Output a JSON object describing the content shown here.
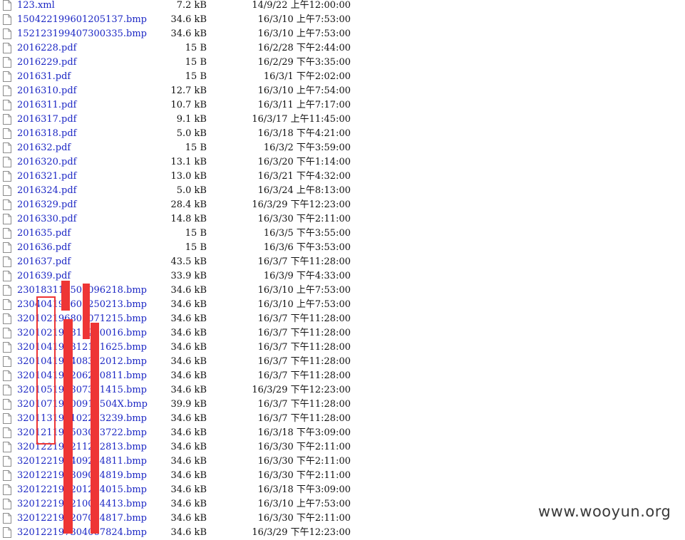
{
  "files": [
    {
      "name": "123.xml",
      "size": "7.2 kB",
      "date": "14/9/22 上午12:00:00"
    },
    {
      "name": "150422199601205137.bmp",
      "size": "34.6 kB",
      "date": "16/3/10 上午7:53:00"
    },
    {
      "name": "152123199407300335.bmp",
      "size": "34.6 kB",
      "date": "16/3/10 上午7:53:00"
    },
    {
      "name": "2016228.pdf",
      "size": "15 B",
      "date": "16/2/28 下午2:44:00"
    },
    {
      "name": "2016229.pdf",
      "size": "15 B",
      "date": "16/2/29 下午3:35:00"
    },
    {
      "name": "201631.pdf",
      "size": "15 B",
      "date": "16/3/1 下午2:02:00"
    },
    {
      "name": "2016310.pdf",
      "size": "12.7 kB",
      "date": "16/3/10 上午7:54:00"
    },
    {
      "name": "2016311.pdf",
      "size": "10.7 kB",
      "date": "16/3/11 上午7:17:00"
    },
    {
      "name": "2016317.pdf",
      "size": "9.1 kB",
      "date": "16/3/17 上午11:45:00"
    },
    {
      "name": "2016318.pdf",
      "size": "5.0 kB",
      "date": "16/3/18 下午4:21:00"
    },
    {
      "name": "201632.pdf",
      "size": "15 B",
      "date": "16/3/2 下午3:59:00"
    },
    {
      "name": "2016320.pdf",
      "size": "13.1 kB",
      "date": "16/3/20 下午1:14:00"
    },
    {
      "name": "2016321.pdf",
      "size": "13.0 kB",
      "date": "16/3/21 下午4:32:00"
    },
    {
      "name": "2016324.pdf",
      "size": "5.0 kB",
      "date": "16/3/24 上午8:13:00"
    },
    {
      "name": "2016329.pdf",
      "size": "28.4 kB",
      "date": "16/3/29 下午12:23:00"
    },
    {
      "name": "2016330.pdf",
      "size": "14.8 kB",
      "date": "16/3/30 下午2:11:00"
    },
    {
      "name": "201635.pdf",
      "size": "15 B",
      "date": "16/3/5 下午3:55:00"
    },
    {
      "name": "201636.pdf",
      "size": "15 B",
      "date": "16/3/6 下午3:53:00"
    },
    {
      "name": "201637.pdf",
      "size": "43.5 kB",
      "date": "16/3/7 下午11:28:00"
    },
    {
      "name": "201639.pdf",
      "size": "33.9 kB",
      "date": "16/3/9 下午4:33:00"
    },
    {
      "name": "230183119502096218.bmp",
      "size": "34.6 kB",
      "date": "16/3/10 上午7:53:00"
    },
    {
      "name": "230404196608250213.bmp",
      "size": "34.6 kB",
      "date": "16/3/10 上午7:53:00"
    },
    {
      "name": "320102196802071215.bmp",
      "size": "34.6 kB",
      "date": "16/3/7 下午11:28:00"
    },
    {
      "name": "320102196811200016.bmp",
      "size": "34.6 kB",
      "date": "16/3/7 下午11:28:00"
    },
    {
      "name": "320104196312121625.bmp",
      "size": "34.6 kB",
      "date": "16/3/7 下午11:28:00"
    },
    {
      "name": "320104196408302012.bmp",
      "size": "34.6 kB",
      "date": "16/3/7 下午11:28:00"
    },
    {
      "name": "320104196206200811.bmp",
      "size": "34.6 kB",
      "date": "16/3/7 下午11:28:00"
    },
    {
      "name": "320105196307301415.bmp",
      "size": "34.6 kB",
      "date": "16/3/29 下午12:23:00"
    },
    {
      "name": "32010719600918504X.bmp",
      "size": "39.9 kB",
      "date": "16/3/7 下午11:28:00"
    },
    {
      "name": "320113196102283239.bmp",
      "size": "34.6 kB",
      "date": "16/3/7 下午11:28:00"
    },
    {
      "name": "320121196503033722.bmp",
      "size": "34.6 kB",
      "date": "16/3/18 下午3:09:00"
    },
    {
      "name": "320122196211222813.bmp",
      "size": "34.6 kB",
      "date": "16/3/30 下午2:11:00"
    },
    {
      "name": "320122196409244811.bmp",
      "size": "34.6 kB",
      "date": "16/3/30 下午2:11:00"
    },
    {
      "name": "320122196309044819.bmp",
      "size": "34.6 kB",
      "date": "16/3/30 下午2:11:00"
    },
    {
      "name": "320122196201244015.bmp",
      "size": "34.6 kB",
      "date": "16/3/18 下午3:09:00"
    },
    {
      "name": "320122196210044413.bmp",
      "size": "34.6 kB",
      "date": "16/3/10 上午7:53:00"
    },
    {
      "name": "320122196207044817.bmp",
      "size": "34.6 kB",
      "date": "16/3/30 下午2:11:00"
    },
    {
      "name": "320122197304067824.bmp",
      "size": "34.6 kB",
      "date": "16/3/29 下午12:23:00"
    }
  ],
  "watermark": "www.wooyun.org",
  "colors": {
    "link": "#1b26c4",
    "text": "#111111",
    "redaction": "#ee3535",
    "watermark": "#3a3a3a"
  },
  "icons": {
    "file": "file-icon"
  }
}
